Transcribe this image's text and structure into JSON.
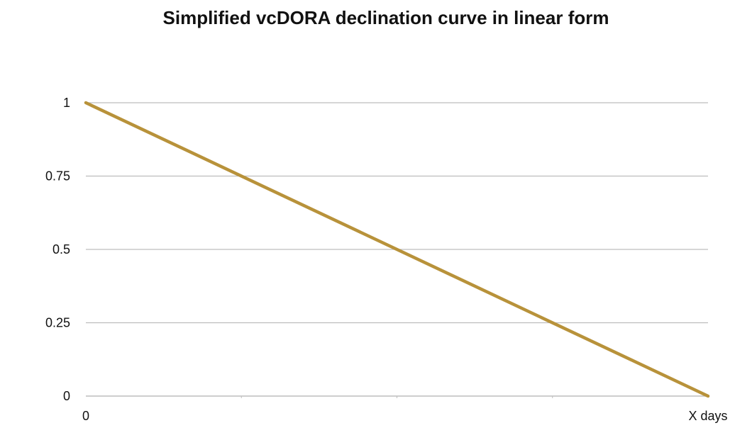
{
  "chart_data": {
    "type": "line",
    "title": "Simplified vcDORA declination curve in linear form",
    "xlabel": "",
    "ylabel": "",
    "x_tick_labels": [
      "0",
      "X days"
    ],
    "y_tick_labels": [
      "0",
      "0.25",
      "0.5",
      "0.75",
      "1"
    ],
    "y_ticks": [
      0,
      0.25,
      0.5,
      0.75,
      1
    ],
    "x": [
      0,
      1
    ],
    "ylim": [
      0,
      1
    ],
    "xlim": [
      0,
      1
    ],
    "grid": true,
    "series": [
      {
        "name": "vcDORA",
        "x": [
          0,
          1
        ],
        "values": [
          1,
          0
        ],
        "color": "#B8923A"
      }
    ],
    "colors": {
      "gridline": "#BDBDBD",
      "axis": "#BDBDBD",
      "text": "#111111"
    }
  }
}
